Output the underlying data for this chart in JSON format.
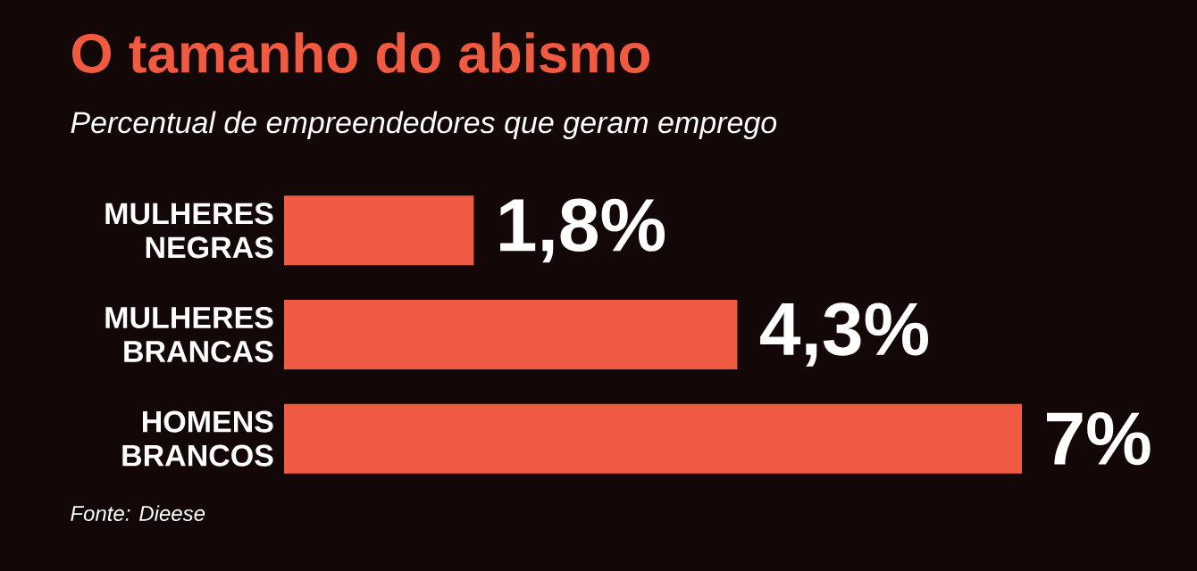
{
  "chart_data": {
    "type": "bar",
    "orientation": "horizontal",
    "title": "O tamanho do abismo",
    "subtitle": "Percentual de empreendedores que geram emprego",
    "categories": [
      "MULHERES NEGRAS",
      "MULHERES BRANCAS",
      "HOMENS BRANCOS"
    ],
    "values": [
      1.8,
      4.3,
      7
    ],
    "value_labels": [
      "1,8%",
      "4,3%",
      "7%"
    ],
    "color": "#ef5a43",
    "tick_labels": "y",
    "annotations": [
      "Fonte: Dieese"
    ]
  }
}
